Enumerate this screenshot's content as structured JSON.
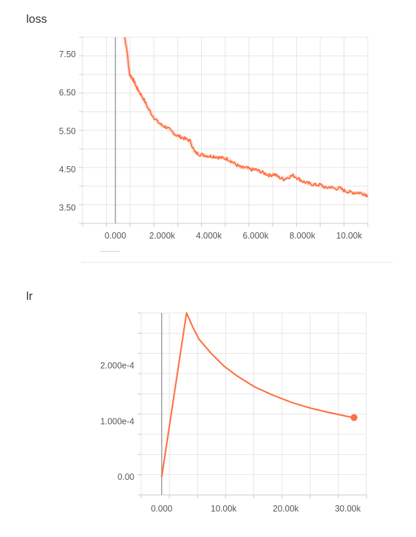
{
  "chart_data": [
    {
      "type": "line",
      "title": "loss",
      "xlabel": "",
      "ylabel": "",
      "x_tick_labels": [
        "0.000",
        "2.000k",
        "4.000k",
        "6.000k",
        "8.000k",
        "10.00k"
      ],
      "x_ticks": [
        0,
        2000,
        4000,
        6000,
        8000,
        10000
      ],
      "y_tick_labels": [
        "7.50",
        "6.50",
        "5.50",
        "4.50",
        "3.50"
      ],
      "y_ticks": [
        7.5,
        6.5,
        5.5,
        4.5,
        3.5
      ],
      "xlim": [
        -1400,
        10800
      ],
      "ylim": [
        3.1,
        7.95
      ],
      "grid": true,
      "color": "#ff7043",
      "series": [
        {
          "x": [
            400,
            500,
            600,
            700,
            800,
            900,
            1000,
            1200,
            1400,
            1600,
            1800,
            2000,
            2200,
            2400,
            2600,
            2800,
            3000,
            3200,
            3400,
            3600,
            3800,
            4000,
            4200,
            4400,
            4600,
            4800,
            5000,
            5200,
            5400,
            5600,
            5800,
            6000,
            6200,
            6400,
            6600,
            6800,
            7000,
            7200,
            7400,
            7600,
            7800,
            8000,
            8200,
            8400,
            8600,
            8800,
            9000,
            9200,
            9400,
            9600,
            9800,
            10000,
            10200,
            10400,
            10600,
            10800
          ],
          "y": [
            7.95,
            7.6,
            7.0,
            6.9,
            6.8,
            6.65,
            6.55,
            6.35,
            6.1,
            5.9,
            5.75,
            5.65,
            5.6,
            5.5,
            5.4,
            5.35,
            5.3,
            5.25,
            4.95,
            4.9,
            4.88,
            4.85,
            4.85,
            4.82,
            4.8,
            4.78,
            4.7,
            4.62,
            4.55,
            4.55,
            4.5,
            4.5,
            4.45,
            4.4,
            4.35,
            4.38,
            4.3,
            4.25,
            4.3,
            4.35,
            4.28,
            4.2,
            4.15,
            4.12,
            4.1,
            4.1,
            4.02,
            4.05,
            4.0,
            4.02,
            3.95,
            3.92,
            3.9,
            3.9,
            3.88,
            3.82
          ]
        }
      ]
    },
    {
      "type": "line",
      "title": "lr",
      "xlabel": "",
      "ylabel": "",
      "x_tick_labels": [
        "0.000",
        "10.00k",
        "20.00k",
        "30.00k"
      ],
      "x_ticks": [
        0,
        10000,
        20000,
        30000
      ],
      "y_tick_labels": [
        "2.000e-4",
        "1.000e-4",
        "0.00"
      ],
      "y_ticks": [
        0.0002,
        0.0001,
        0
      ],
      "xlim": [
        -3300,
        33000
      ],
      "ylim": [
        -3.2e-05,
        0.000295
      ],
      "grid": true,
      "color": "#ff7043",
      "series": [
        {
          "x": [
            0,
            4000,
            5000,
            6000,
            8000,
            10000,
            12000,
            15000,
            18000,
            21000,
            24000,
            27000,
            30000,
            31000
          ],
          "y": [
            0,
            0.000295,
            0.00027,
            0.000248,
            0.000222,
            0.0002,
            0.000183,
            0.000162,
            0.000147,
            0.000134,
            0.000124,
            0.000116,
            0.000109,
            0.000107
          ]
        }
      ]
    }
  ]
}
